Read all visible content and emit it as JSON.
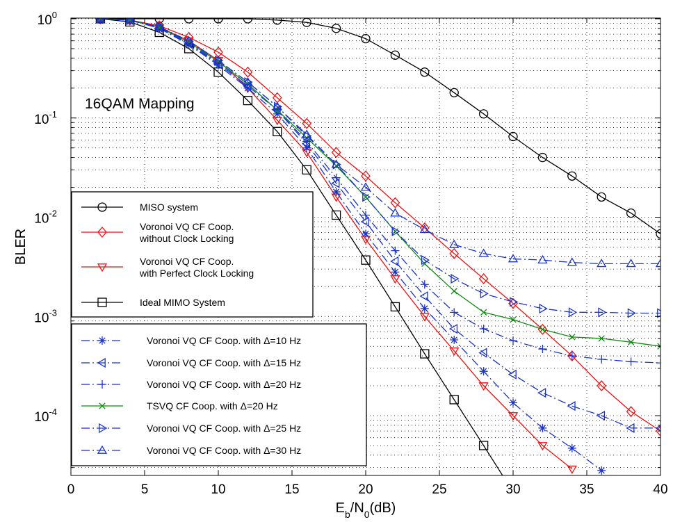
{
  "chart_data": {
    "type": "line",
    "xlabel": "E_b/N_0(dB)",
    "ylabel": "BLER",
    "xlim": [
      0,
      40
    ],
    "ylim": [
      3e-05,
      1
    ],
    "yscale": "log",
    "grid": true,
    "annotation": "16QAM Mapping",
    "x_ticks": [
      "0",
      "5",
      "10",
      "15",
      "20",
      "25",
      "30",
      "35",
      "40"
    ],
    "y_ticks": [
      {
        "base": "10",
        "exp": "0"
      },
      {
        "base": "10",
        "exp": "-1"
      },
      {
        "base": "10",
        "exp": "-2"
      },
      {
        "base": "10",
        "exp": "-3"
      },
      {
        "base": "10",
        "exp": "-4"
      }
    ],
    "legend_placement": "left",
    "series": [
      {
        "name": "MISO system",
        "color": "#000000",
        "dash": "solid",
        "marker": "circle",
        "x": [
          2,
          4,
          6,
          8,
          10,
          12,
          14,
          16,
          18,
          20,
          22,
          24,
          26,
          28,
          30,
          32,
          34,
          36,
          38,
          40
        ],
        "y": [
          1,
          1,
          1,
          1,
          1,
          1,
          0.97,
          0.92,
          0.8,
          0.63,
          0.43,
          0.29,
          0.18,
          0.11,
          0.065,
          0.04,
          0.026,
          0.016,
          0.011,
          0.0068
        ]
      },
      {
        "name": "Voronoi VQ CF Coop. without Clock Locking",
        "color": "#ee1111",
        "dash": "solid",
        "marker": "diamond",
        "x": [
          2,
          4,
          6,
          8,
          10,
          12,
          14,
          16,
          18,
          20,
          22,
          24,
          26,
          28,
          30,
          32,
          34,
          36,
          38,
          40
        ],
        "y": [
          1,
          0.97,
          0.85,
          0.65,
          0.46,
          0.29,
          0.16,
          0.088,
          0.045,
          0.026,
          0.014,
          0.0078,
          0.0043,
          0.0024,
          0.00135,
          0.00074,
          0.0004,
          0.0002,
          0.00011,
          7e-05
        ]
      },
      {
        "name": "Voronoi VQ CF Coop. with Perfect Clock Locking",
        "color": "#ee1111",
        "dash": "solid",
        "marker": "triangle-down",
        "x": [
          2,
          4,
          6,
          8,
          10,
          12,
          14,
          16,
          18,
          20,
          22,
          24,
          26,
          28,
          30,
          32,
          34
        ],
        "y": [
          1,
          0.97,
          0.82,
          0.6,
          0.38,
          0.2,
          0.095,
          0.045,
          0.016,
          0.006,
          0.0024,
          0.001,
          0.00045,
          0.0002,
          0.0001,
          5e-05,
          2.9e-05
        ]
      },
      {
        "name": "Ideal MIMO System",
        "color": "#000000",
        "dash": "solid",
        "marker": "square",
        "x": [
          2,
          4,
          6,
          8,
          10,
          12,
          14,
          16,
          18,
          20,
          22,
          24,
          26,
          28,
          30
        ],
        "y": [
          1,
          0.93,
          0.73,
          0.5,
          0.29,
          0.15,
          0.073,
          0.03,
          0.0105,
          0.0037,
          0.00125,
          0.00042,
          0.000145,
          5e-05,
          1.7e-05
        ]
      },
      {
        "name": "Voronoi VQ CF Coop. with Δ=10  Hz",
        "color": "#1a33cc",
        "dash": "dashdot",
        "marker": "asterisk",
        "x": [
          2,
          4,
          6,
          8,
          10,
          12,
          14,
          16,
          18,
          20,
          22,
          24,
          26,
          28,
          30,
          32,
          34,
          36
        ],
        "y": [
          1,
          0.97,
          0.8,
          0.55,
          0.34,
          0.2,
          0.11,
          0.05,
          0.018,
          0.0068,
          0.0028,
          0.0012,
          0.00058,
          0.00028,
          0.000135,
          7.5e-05,
          4.7e-05,
          2.8e-05
        ]
      },
      {
        "name": "Voronoi VQ CF Coop. with Δ=15  Hz",
        "color": "#1a33cc",
        "dash": "dashdot",
        "marker": "triangle-left",
        "x": [
          2,
          4,
          6,
          8,
          10,
          12,
          14,
          16,
          18,
          20,
          22,
          24,
          26,
          28,
          30,
          32,
          34,
          36,
          38,
          40
        ],
        "y": [
          1,
          0.97,
          0.81,
          0.56,
          0.35,
          0.21,
          0.12,
          0.055,
          0.022,
          0.009,
          0.0036,
          0.0016,
          0.00075,
          0.00043,
          0.00026,
          0.00017,
          0.000125,
          0.0001,
          7.5e-05,
          7.5e-05
        ]
      },
      {
        "name": "Voronoi VQ CF Coop. with Δ=20  Hz",
        "color": "#1a33cc",
        "dash": "dashdot",
        "marker": "plus",
        "x": [
          2,
          4,
          6,
          8,
          10,
          12,
          14,
          16,
          18,
          20,
          22,
          24,
          26,
          28,
          30,
          32,
          34,
          36,
          38,
          40
        ],
        "y": [
          1,
          0.97,
          0.81,
          0.57,
          0.36,
          0.22,
          0.12,
          0.058,
          0.025,
          0.0105,
          0.0046,
          0.0021,
          0.0011,
          0.00075,
          0.00057,
          0.00047,
          0.0004,
          0.00037,
          0.00035,
          0.00034
        ]
      },
      {
        "name": "TSVQ CF Coop. with Δ=20  Hz",
        "color": "#0e8a0e",
        "dash": "solid",
        "marker": "x",
        "x": [
          2,
          4,
          6,
          8,
          10,
          12,
          14,
          16,
          18,
          20,
          22,
          24,
          26,
          28,
          30,
          32,
          34,
          36,
          38,
          40
        ],
        "y": [
          1,
          0.97,
          0.82,
          0.58,
          0.37,
          0.22,
          0.12,
          0.063,
          0.033,
          0.016,
          0.0072,
          0.0034,
          0.0018,
          0.0011,
          0.00093,
          0.00074,
          0.00062,
          0.0006,
          0.00055,
          0.0005
        ]
      },
      {
        "name": "Voronoi VQ CF Coop. with Δ=25 Hz",
        "color": "#1a33cc",
        "dash": "dashdot",
        "marker": "triangle-right",
        "x": [
          2,
          4,
          6,
          8,
          10,
          12,
          14,
          16,
          18,
          20,
          22,
          24,
          26,
          28,
          30,
          32,
          34,
          36,
          38,
          40
        ],
        "y": [
          1,
          0.97,
          0.82,
          0.59,
          0.38,
          0.23,
          0.13,
          0.066,
          0.034,
          0.016,
          0.0072,
          0.0037,
          0.0024,
          0.0017,
          0.0014,
          0.0012,
          0.0011,
          0.0011,
          0.00108,
          0.00108
        ]
      },
      {
        "name": "Voronoi VQ CF Coop. with Δ=30 Hz",
        "color": "#1a33cc",
        "dash": "dashdot",
        "marker": "triangle-up",
        "x": [
          2,
          4,
          6,
          8,
          10,
          12,
          14,
          16,
          18,
          20,
          22,
          24,
          26,
          28,
          30,
          32,
          34,
          36,
          38,
          40
        ],
        "y": [
          1,
          0.97,
          0.83,
          0.6,
          0.38,
          0.23,
          0.13,
          0.068,
          0.034,
          0.02,
          0.011,
          0.0075,
          0.0053,
          0.0043,
          0.0038,
          0.0037,
          0.0035,
          0.0034,
          0.0034,
          0.0034
        ]
      }
    ]
  }
}
